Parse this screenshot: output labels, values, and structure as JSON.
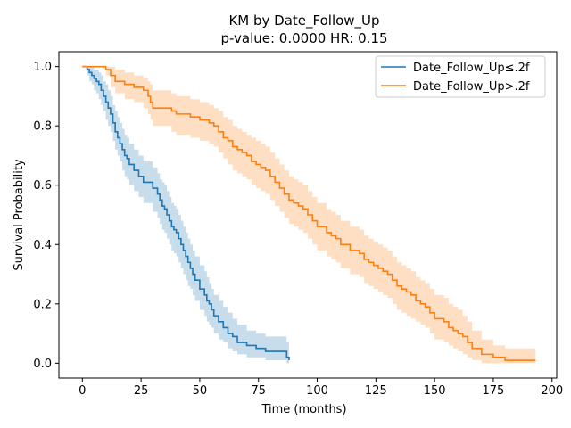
{
  "chart_data": {
    "type": "line",
    "title": "KM by Date_Follow_Up",
    "subtitle": "p-value: 0.0000  HR: 0.15",
    "xlabel": "Time (months)",
    "ylabel": "Survival Probability",
    "xlim": [
      -10,
      202
    ],
    "ylim": [
      -0.05,
      1.05
    ],
    "x_ticks": [
      0,
      25,
      50,
      75,
      100,
      125,
      150,
      175,
      200
    ],
    "y_ticks": [
      0.0,
      0.2,
      0.4,
      0.6,
      0.8,
      1.0
    ],
    "x_tick_labels": [
      "0",
      "25",
      "50",
      "75",
      "100",
      "125",
      "150",
      "175",
      "200"
    ],
    "y_tick_labels": [
      "0.0",
      "0.2",
      "0.4",
      "0.6",
      "0.8",
      "1.0"
    ],
    "grid": false,
    "legend_position": "top-right",
    "series": [
      {
        "name": "Date_Follow_Up≤.2f",
        "color": "#1f77b4",
        "step": true,
        "x": [
          0,
          2,
          3,
          4,
          5,
          6,
          7,
          8,
          9,
          10,
          11,
          12,
          13,
          14,
          15,
          16,
          17,
          18,
          19,
          20,
          22,
          24,
          26,
          28,
          30,
          32,
          33,
          34,
          35,
          36,
          37,
          38,
          39,
          40,
          41,
          42,
          43,
          44,
          45,
          46,
          47,
          48,
          50,
          52,
          53,
          54,
          55,
          56,
          58,
          60,
          62,
          64,
          66,
          70,
          74,
          78,
          82,
          86,
          87,
          88
        ],
        "y": [
          1.0,
          0.99,
          0.98,
          0.97,
          0.96,
          0.95,
          0.94,
          0.92,
          0.9,
          0.88,
          0.86,
          0.84,
          0.81,
          0.78,
          0.76,
          0.74,
          0.72,
          0.7,
          0.69,
          0.67,
          0.65,
          0.63,
          0.61,
          0.61,
          0.59,
          0.57,
          0.55,
          0.53,
          0.52,
          0.5,
          0.48,
          0.46,
          0.45,
          0.44,
          0.42,
          0.4,
          0.38,
          0.36,
          0.34,
          0.32,
          0.3,
          0.28,
          0.25,
          0.23,
          0.21,
          0.2,
          0.18,
          0.16,
          0.14,
          0.12,
          0.1,
          0.09,
          0.07,
          0.06,
          0.05,
          0.04,
          0.04,
          0.04,
          0.02,
          0.01
        ],
        "ci_lower": [
          1.0,
          0.97,
          0.95,
          0.94,
          0.92,
          0.91,
          0.89,
          0.87,
          0.85,
          0.82,
          0.8,
          0.78,
          0.75,
          0.72,
          0.7,
          0.68,
          0.65,
          0.63,
          0.62,
          0.6,
          0.58,
          0.56,
          0.54,
          0.54,
          0.51,
          0.49,
          0.47,
          0.45,
          0.44,
          0.42,
          0.4,
          0.38,
          0.37,
          0.36,
          0.34,
          0.32,
          0.3,
          0.28,
          0.26,
          0.25,
          0.23,
          0.21,
          0.18,
          0.16,
          0.14,
          0.13,
          0.12,
          0.1,
          0.08,
          0.07,
          0.05,
          0.04,
          0.03,
          0.02,
          0.02,
          0.01,
          0.01,
          0.01,
          0.0,
          0.0
        ],
        "ci_upper": [
          1.0,
          1.0,
          1.0,
          1.0,
          0.99,
          0.99,
          0.98,
          0.97,
          0.95,
          0.94,
          0.92,
          0.9,
          0.87,
          0.85,
          0.83,
          0.81,
          0.79,
          0.77,
          0.76,
          0.74,
          0.72,
          0.7,
          0.68,
          0.68,
          0.66,
          0.64,
          0.62,
          0.61,
          0.6,
          0.58,
          0.56,
          0.54,
          0.53,
          0.52,
          0.5,
          0.48,
          0.46,
          0.44,
          0.42,
          0.4,
          0.38,
          0.36,
          0.33,
          0.31,
          0.29,
          0.27,
          0.25,
          0.23,
          0.21,
          0.19,
          0.17,
          0.15,
          0.13,
          0.11,
          0.1,
          0.09,
          0.09,
          0.09,
          0.07,
          0.05
        ]
      },
      {
        "name": "Date_Follow_Up>.2f",
        "color": "#ff7f0e",
        "step": true,
        "x": [
          0,
          10,
          12,
          14,
          18,
          22,
          24,
          26,
          28,
          29,
          30,
          36,
          38,
          40,
          46,
          50,
          54,
          56,
          58,
          60,
          62,
          64,
          66,
          68,
          70,
          72,
          74,
          76,
          78,
          80,
          82,
          84,
          86,
          88,
          90,
          92,
          94,
          96,
          98,
          100,
          104,
          106,
          108,
          110,
          114,
          118,
          120,
          122,
          124,
          126,
          128,
          130,
          132,
          134,
          136,
          138,
          140,
          142,
          144,
          146,
          148,
          150,
          152,
          154,
          156,
          158,
          160,
          162,
          164,
          166,
          170,
          175,
          180,
          185,
          190,
          193
        ],
        "y": [
          1.0,
          0.99,
          0.97,
          0.95,
          0.94,
          0.93,
          0.93,
          0.92,
          0.9,
          0.88,
          0.86,
          0.86,
          0.85,
          0.84,
          0.83,
          0.82,
          0.81,
          0.8,
          0.78,
          0.76,
          0.75,
          0.73,
          0.72,
          0.71,
          0.7,
          0.68,
          0.67,
          0.66,
          0.65,
          0.63,
          0.61,
          0.59,
          0.57,
          0.55,
          0.54,
          0.53,
          0.52,
          0.5,
          0.48,
          0.46,
          0.44,
          0.43,
          0.42,
          0.4,
          0.38,
          0.37,
          0.35,
          0.34,
          0.33,
          0.32,
          0.31,
          0.3,
          0.28,
          0.26,
          0.25,
          0.24,
          0.23,
          0.21,
          0.2,
          0.19,
          0.17,
          0.15,
          0.15,
          0.14,
          0.12,
          0.11,
          0.1,
          0.09,
          0.07,
          0.05,
          0.03,
          0.02,
          0.01,
          0.01,
          0.01,
          0.01
        ],
        "ci_lower": [
          1.0,
          0.97,
          0.93,
          0.91,
          0.89,
          0.88,
          0.88,
          0.86,
          0.84,
          0.82,
          0.8,
          0.8,
          0.78,
          0.77,
          0.76,
          0.75,
          0.74,
          0.73,
          0.71,
          0.69,
          0.67,
          0.65,
          0.64,
          0.63,
          0.62,
          0.6,
          0.59,
          0.58,
          0.57,
          0.55,
          0.53,
          0.51,
          0.49,
          0.47,
          0.46,
          0.45,
          0.44,
          0.42,
          0.4,
          0.38,
          0.36,
          0.35,
          0.34,
          0.32,
          0.3,
          0.29,
          0.27,
          0.26,
          0.25,
          0.24,
          0.23,
          0.22,
          0.2,
          0.18,
          0.17,
          0.16,
          0.15,
          0.14,
          0.13,
          0.12,
          0.1,
          0.08,
          0.08,
          0.07,
          0.06,
          0.05,
          0.04,
          0.03,
          0.02,
          0.01,
          0.0,
          0.0,
          0.0,
          0.0,
          0.0,
          0.0
        ],
        "ci_upper": [
          1.0,
          1.0,
          1.0,
          0.99,
          0.98,
          0.97,
          0.97,
          0.96,
          0.95,
          0.94,
          0.92,
          0.92,
          0.91,
          0.9,
          0.89,
          0.88,
          0.87,
          0.86,
          0.85,
          0.83,
          0.82,
          0.8,
          0.79,
          0.78,
          0.77,
          0.76,
          0.75,
          0.74,
          0.73,
          0.71,
          0.69,
          0.67,
          0.65,
          0.63,
          0.62,
          0.61,
          0.6,
          0.58,
          0.56,
          0.54,
          0.52,
          0.51,
          0.5,
          0.48,
          0.46,
          0.45,
          0.43,
          0.42,
          0.41,
          0.4,
          0.39,
          0.38,
          0.36,
          0.34,
          0.33,
          0.32,
          0.31,
          0.29,
          0.28,
          0.27,
          0.25,
          0.23,
          0.23,
          0.22,
          0.2,
          0.19,
          0.18,
          0.16,
          0.14,
          0.11,
          0.08,
          0.06,
          0.05,
          0.05,
          0.05,
          0.05
        ]
      }
    ]
  }
}
